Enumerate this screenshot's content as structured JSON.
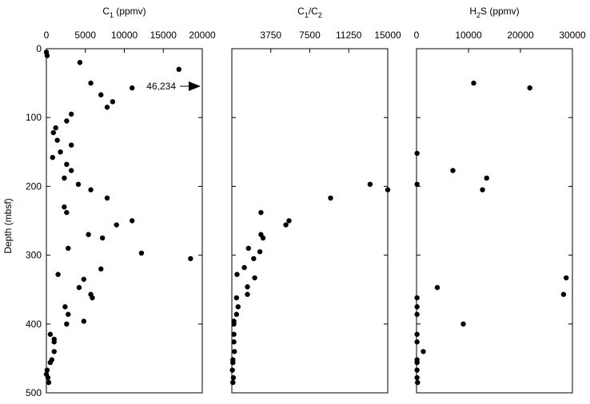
{
  "figure": {
    "ylabel": "Depth (mbsf)",
    "ylim": [
      0,
      500
    ],
    "yticks": [
      "0",
      "100",
      "200",
      "300",
      "400",
      "500"
    ],
    "annotation": "46,234"
  },
  "chart_data": [
    {
      "type": "scatter",
      "title": "C1 (ppmv)",
      "title_parts": {
        "base": "C",
        "sub": "1",
        "rest": " (ppmv)"
      },
      "xlim": [
        0,
        20000
      ],
      "xticks": [
        "0",
        "5000",
        "10000",
        "15000",
        "20000"
      ],
      "ylabel": "Depth (mbsf)",
      "ylim": [
        0,
        500
      ],
      "points": [
        [
          0,
          5
        ],
        [
          100,
          10
        ],
        [
          4300,
          20
        ],
        [
          17000,
          30
        ],
        [
          5700,
          50
        ],
        [
          11000,
          57
        ],
        [
          7000,
          67
        ],
        [
          8500,
          77
        ],
        [
          7800,
          85
        ],
        [
          3200,
          95
        ],
        [
          2600,
          105
        ],
        [
          1200,
          115
        ],
        [
          900,
          122
        ],
        [
          1400,
          133
        ],
        [
          3200,
          140
        ],
        [
          1800,
          150
        ],
        [
          800,
          158
        ],
        [
          2600,
          168
        ],
        [
          3200,
          177
        ],
        [
          2300,
          188
        ],
        [
          4100,
          197
        ],
        [
          5700,
          205
        ],
        [
          7800,
          217
        ],
        [
          2300,
          230
        ],
        [
          2600,
          238
        ],
        [
          11000,
          250
        ],
        [
          9000,
          256
        ],
        [
          5400,
          270
        ],
        [
          7200,
          275
        ],
        [
          2800,
          290
        ],
        [
          12200,
          297
        ],
        [
          18500,
          305
        ],
        [
          7000,
          320
        ],
        [
          1500,
          328
        ],
        [
          4800,
          335
        ],
        [
          4200,
          347
        ],
        [
          5700,
          357
        ],
        [
          5900,
          362
        ],
        [
          2400,
          375
        ],
        [
          2800,
          386
        ],
        [
          4800,
          396
        ],
        [
          2600,
          400
        ],
        [
          500,
          415
        ],
        [
          1000,
          422
        ],
        [
          1000,
          426
        ],
        [
          1000,
          440
        ],
        [
          700,
          452
        ],
        [
          500,
          456
        ],
        [
          100,
          467
        ],
        [
          0,
          473
        ],
        [
          200,
          478
        ],
        [
          300,
          485
        ]
      ],
      "annotation": {
        "text": "46,234",
        "depth": 65
      }
    },
    {
      "type": "scatter",
      "title": "C1/C2",
      "title_parts": {
        "base": "C",
        "sub": "1",
        "mid": "/C",
        "sub2": "2"
      },
      "xlim": [
        0,
        15000
      ],
      "xticks": [
        "3750",
        "7500",
        "11250",
        "15000"
      ],
      "xtick_values": [
        3750,
        7500,
        11250,
        15000
      ],
      "points": [
        [
          2800,
          238
        ],
        [
          5500,
          250
        ],
        [
          5200,
          256
        ],
        [
          2800,
          270
        ],
        [
          3000,
          275
        ],
        [
          1600,
          290
        ],
        [
          2700,
          295
        ],
        [
          2100,
          305
        ],
        [
          1200,
          318
        ],
        [
          2200,
          333
        ],
        [
          500,
          328
        ],
        [
          1500,
          346
        ],
        [
          1500,
          357
        ],
        [
          450,
          362
        ],
        [
          600,
          375
        ],
        [
          450,
          386
        ],
        [
          200,
          396
        ],
        [
          200,
          400
        ],
        [
          200,
          415
        ],
        [
          200,
          426
        ],
        [
          250,
          440
        ],
        [
          100,
          452
        ],
        [
          100,
          456
        ],
        [
          50,
          467
        ],
        [
          150,
          478
        ],
        [
          100,
          485
        ],
        [
          9500,
          217
        ],
        [
          13300,
          197
        ],
        [
          15000,
          205
        ]
      ]
    },
    {
      "type": "scatter",
      "title": "H2S (ppmv)",
      "title_parts": {
        "base": "H",
        "sub": "2",
        "rest": "S (ppmv)"
      },
      "xlim": [
        0,
        30000
      ],
      "xticks": [
        "0",
        "10000",
        "20000",
        "30000"
      ],
      "points": [
        [
          11000,
          50
        ],
        [
          21800,
          57
        ],
        [
          100,
          152
        ],
        [
          7000,
          177
        ],
        [
          13500,
          188
        ],
        [
          12700,
          205
        ],
        [
          100,
          197
        ],
        [
          28800,
          333
        ],
        [
          28300,
          357
        ],
        [
          4000,
          347
        ],
        [
          100,
          362
        ],
        [
          100,
          375
        ],
        [
          100,
          386
        ],
        [
          9000,
          400
        ],
        [
          100,
          415
        ],
        [
          100,
          426
        ],
        [
          1300,
          440
        ],
        [
          100,
          452
        ],
        [
          100,
          456
        ],
        [
          100,
          467
        ],
        [
          100,
          478
        ],
        [
          200,
          485
        ]
      ]
    }
  ]
}
